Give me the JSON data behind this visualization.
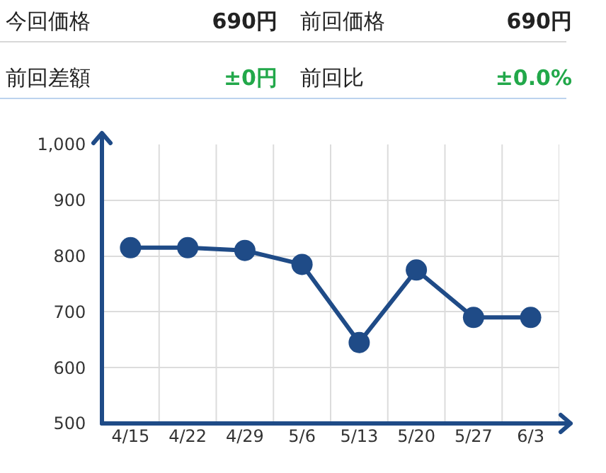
{
  "chart_data": [
    {
      "type": "other",
      "annotations": [
        "今回価格",
        "690円",
        "前回価格",
        "690円",
        "前回差額",
        "±0円",
        "前回比",
        "±0.0%"
      ]
    },
    {
      "type": "line",
      "categories": [
        "4/15",
        "4/22",
        "4/29",
        "5/6",
        "5/13",
        "5/20",
        "5/27",
        "6/3"
      ],
      "values": [
        815,
        815,
        810,
        785,
        645,
        775,
        690,
        690
      ],
      "color": "#1f4b87",
      "marker": "circle",
      "line_style": "solid",
      "ylim": [
        500,
        1000
      ],
      "yticks": [
        500,
        600,
        700,
        800,
        900,
        {
          "value": 1000,
          "label": "1,000"
        }
      ],
      "grid": true,
      "legend": false
    }
  ]
}
